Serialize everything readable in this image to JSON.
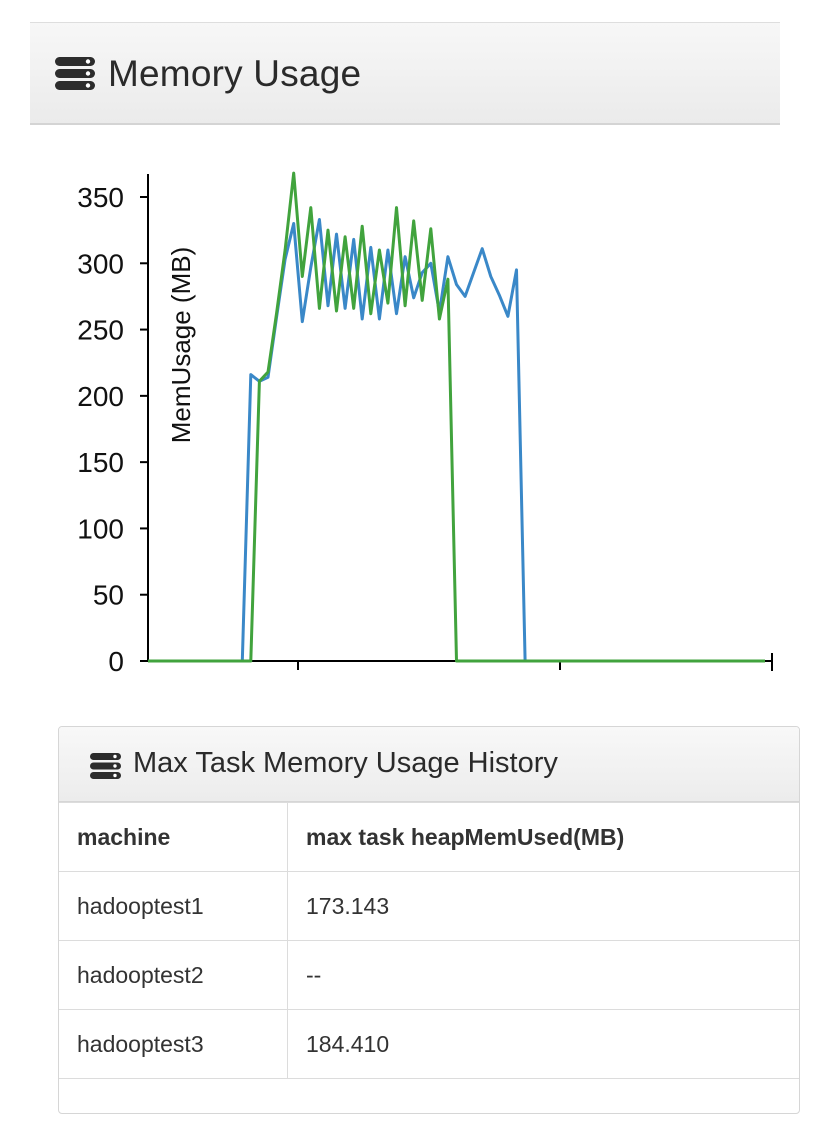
{
  "memory_panel": {
    "title": "Memory Usage",
    "icon": "list-icon"
  },
  "chart_data": {
    "type": "line",
    "ylabel": "MemUsage (MB)",
    "xlabel": "",
    "ylim": [
      0,
      370
    ],
    "yticks": [
      0,
      50,
      100,
      150,
      200,
      250,
      300,
      350
    ],
    "grid": false,
    "x": [
      0,
      5,
      11,
      12,
      13,
      14,
      15,
      16,
      17,
      18,
      19,
      20,
      21,
      22,
      23,
      24,
      25,
      26,
      27,
      28,
      29,
      30,
      31,
      32,
      33,
      34,
      35,
      36,
      37,
      38,
      39,
      40,
      41,
      42,
      43,
      44,
      45,
      46,
      47,
      48,
      49,
      50,
      51,
      52,
      53,
      54,
      55,
      56,
      57,
      58,
      59,
      60,
      61,
      62,
      63,
      64,
      65,
      66,
      67,
      68,
      69,
      70,
      71,
      72
    ],
    "series": [
      {
        "color": "#3a88c8",
        "values": [
          0,
          0,
          0,
          216,
          211,
          214,
          259,
          303,
          330,
          256,
          297,
          333,
          268,
          322,
          266,
          318,
          258,
          312,
          258,
          310,
          262,
          305,
          274,
          293,
          300,
          263,
          305,
          284,
          275,
          293,
          311,
          290,
          276,
          260,
          295,
          0,
          0,
          0,
          0,
          0,
          0,
          0,
          0,
          0,
          0,
          0,
          0,
          0,
          0,
          0,
          0,
          0,
          0,
          0,
          0,
          0,
          0,
          0,
          0,
          0,
          0,
          0,
          0,
          0
        ]
      },
      {
        "color": "#41a33d",
        "values": [
          0,
          0,
          0,
          0,
          211,
          218,
          262,
          310,
          368,
          290,
          342,
          266,
          325,
          264,
          320,
          266,
          328,
          262,
          310,
          270,
          342,
          268,
          332,
          272,
          326,
          258,
          288,
          0,
          0,
          0,
          0,
          0,
          0,
          0,
          0,
          0,
          0,
          0,
          0,
          0,
          0,
          0,
          0,
          0,
          0,
          0,
          0,
          0,
          0,
          0,
          0,
          0,
          0,
          0,
          0,
          0,
          0,
          0,
          0,
          0,
          0,
          0,
          0,
          0
        ]
      }
    ]
  },
  "history_panel": {
    "title": "Max Task Memory Usage History",
    "icon": "list-icon",
    "columns": [
      "machine",
      "max task heapMemUsed(MB)"
    ],
    "rows": [
      [
        "hadooptest1",
        "173.143"
      ],
      [
        "hadooptest2",
        "--"
      ],
      [
        "hadooptest3",
        "184.410"
      ]
    ]
  }
}
